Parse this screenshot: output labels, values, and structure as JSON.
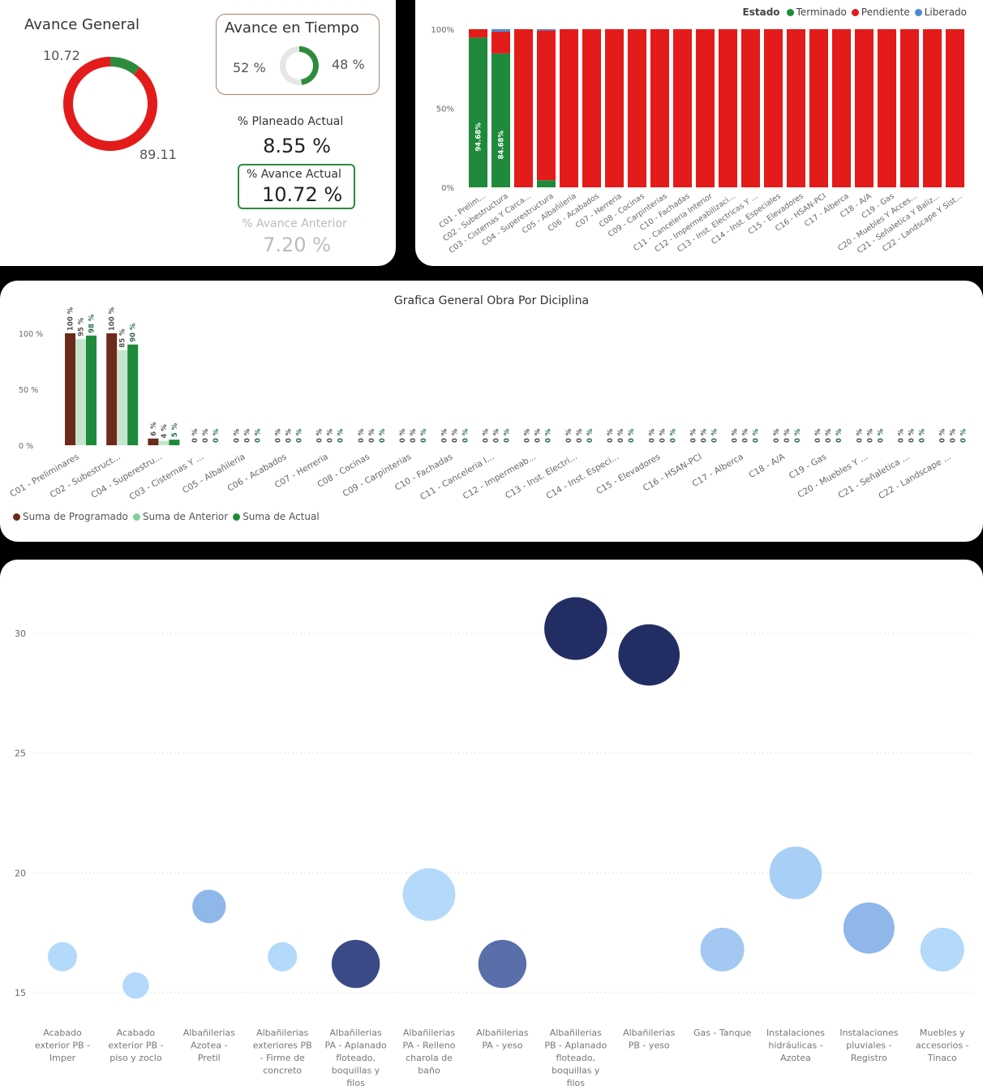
{
  "kpi": {
    "avance_general_title": "Avance General",
    "avance_general_label_small": "10.72",
    "avance_general_label_large": "89.11",
    "avance_tiempo_title": "Avance en Tiempo",
    "tiempo_left": "52 %",
    "tiempo_right": "48 %",
    "planeado_label": "% Planeado Actual",
    "planeado_value": "8.55 %",
    "actual_label": "% Avance Actual",
    "actual_value": "10.72 %",
    "anterior_label": "% Avance Anterior",
    "anterior_value": "7.20 %",
    "donut_general": {
      "completed": 10.72,
      "pending": 89.11
    },
    "donut_tiempo": {
      "elapsed": 48,
      "remaining": 52
    },
    "colors": {
      "green": "#2e8b3e",
      "red": "#e31b1b",
      "grey": "#e6e6e6",
      "blue": "#4a8ad4"
    }
  },
  "chart_data": [
    {
      "type": "bar",
      "stacked_percent": true,
      "legend_title": "Estado",
      "legend_position": "top-right",
      "series_names": [
        "Terminado",
        "Pendiente",
        "Liberado"
      ],
      "series_colors": [
        "#1f8a3b",
        "#e31b1b",
        "#4a8ad4"
      ],
      "y_ticks": [
        "0%",
        "50%",
        "100%"
      ],
      "categories": [
        "C01 - Prelim...",
        "C02 - Subestructura",
        "C03 - Cisternas Y Carca...",
        "C04 - Superestructura",
        "C05 - Albañileria",
        "C06 - Acabados",
        "C07 - Herreria",
        "C08 - Cocinas",
        "C09 - Carpinterias",
        "C10 - Fachadas",
        "C11 - Canceleria Interior",
        "C12 - Impermeabilizaci...",
        "C13 - Inst. Electricas Y ...",
        "C14 - Inst. Especiales",
        "C15 - Elevadores",
        "C16 - HSAN-PCI",
        "C17 - Alberca",
        "C18 - A/A",
        "C19 - Gas",
        "C20 - Muebles Y Acces...",
        "C21 - Señaletica Y Baliz...",
        "C22 - Landscape Y Sist..."
      ],
      "terminado": [
        94.68,
        84.68,
        0,
        4.5,
        0,
        0,
        0,
        0,
        0,
        0,
        0,
        0,
        0,
        0,
        0,
        0,
        0,
        0,
        0,
        0,
        0,
        0
      ],
      "liberado": [
        0,
        1.5,
        0,
        0.8,
        0,
        0,
        0,
        0,
        0,
        0,
        0,
        0,
        0,
        0,
        0,
        0,
        0,
        0,
        0,
        0,
        0,
        0
      ],
      "data_labels": [
        "94.68%",
        "84.68%"
      ]
    },
    {
      "type": "bar",
      "title": "Grafica General Obra Por Diciplina",
      "y_ticks": [
        "0 %",
        "50 %",
        "100 %"
      ],
      "ylim": [
        0,
        100
      ],
      "legend_position": "bottom-left",
      "categories": [
        "C01 - Preliminares",
        "C02 - Subestruct...",
        "C04 - Superestru...",
        "C03 - Cisternas Y ...",
        "C05 - Albañileria",
        "C06 - Acabados",
        "C07 - Herreria",
        "C08 - Cocinas",
        "C09 - Carpinterias",
        "C10 - Fachadas",
        "C11 - Canceleria I...",
        "C12 - Impermeab...",
        "C13 - Inst. Electri...",
        "C14 - Inst. Especi...",
        "C15 - Elevadores",
        "C16 - HSAN-PCI",
        "C17 - Alberca",
        "C18 - A/A",
        "C19 - Gas",
        "C20 - Muebles Y ...",
        "C21 - Señaletica ...",
        "C22 - Landscape ..."
      ],
      "series": [
        {
          "name": "Suma de Programado",
          "color": "#6b2a1a",
          "values": [
            100,
            100,
            6,
            0,
            0,
            0,
            0,
            0,
            0,
            0,
            0,
            0,
            0,
            0,
            0,
            0,
            0,
            0,
            0,
            0,
            0,
            0
          ],
          "labels": [
            "100 %",
            "100 %",
            "6 %",
            "0 %",
            "0 %",
            "0 %",
            "0 %",
            "0 %",
            "0 %",
            "0 %",
            "0 %",
            "0 %",
            "0 %",
            "0 %",
            "0 %",
            "0 %",
            "0 %",
            "0 %",
            "0 %",
            "0 %",
            "0 %",
            "0 %"
          ]
        },
        {
          "name": "Suma de Anterior",
          "color": "#a8dcb4",
          "values": [
            95,
            85,
            4,
            0,
            0,
            0,
            0,
            0,
            0,
            0,
            0,
            0,
            0,
            0,
            0,
            0,
            0,
            0,
            0,
            0,
            0,
            0
          ],
          "labels": [
            "95 %",
            "85 %",
            "4 %",
            "0 %",
            "0 %",
            "0 %",
            "0 %",
            "0 %",
            "0 %",
            "0 %",
            "0 %",
            "0 %",
            "0 %",
            "0 %",
            "0 %",
            "0 %",
            "0 %",
            "0 %",
            "0 %",
            "0 %",
            "0 %",
            "0 %"
          ]
        },
        {
          "name": "Suma de Actual",
          "color": "#1f8a3b",
          "values": [
            98,
            90,
            5,
            0,
            0,
            0,
            0,
            0,
            0,
            0,
            0,
            0,
            0,
            0,
            0,
            0,
            0,
            0,
            0,
            0,
            0,
            0
          ],
          "labels": [
            "98 %",
            "90 %",
            "5 %",
            "0 %",
            "0 %",
            "0 %",
            "0 %",
            "0 %",
            "0 %",
            "0 %",
            "0 %",
            "0 %",
            "0 %",
            "0 %",
            "0 %",
            "0 %",
            "0 %",
            "0 %",
            "0 %",
            "0 %",
            "0 %",
            "0 %"
          ]
        }
      ]
    },
    {
      "type": "scatter",
      "bubble": true,
      "y_ticks": [
        15,
        20,
        25,
        30
      ],
      "ylim": [
        14.5,
        32.5
      ],
      "categories": [
        "Acabado exterior PB - Imper",
        "Acabado exterior PB - piso y zoclo",
        "Albañilerias Azotea - Pretil",
        "Albañilerias exteriores PB - Firme de concreto",
        "Albañilerias PA - Aplanado floteado, boquillas y filos",
        "Albañilerias PA - Relleno charola de baño",
        "Albañilerias PA - yeso",
        "Albañilerias PB - Aplanado floteado, boquillas y filos",
        "Albañilerias PB - yeso",
        "Gas - Tanque",
        "Instalaciones hidráulicas - Azotea",
        "Instalaciones pluviales - Registro",
        "Muebles y accesorios - Tinaco"
      ],
      "points": [
        {
          "x": 0,
          "y": 16.5,
          "size": 2,
          "color": "#b3d9fb"
        },
        {
          "x": 1,
          "y": 15.3,
          "size": 1.8,
          "color": "#b3d9fb"
        },
        {
          "x": 2,
          "y": 18.6,
          "size": 2.3,
          "color": "#8fb7ea"
        },
        {
          "x": 3,
          "y": 16.5,
          "size": 2,
          "color": "#b3d9fb"
        },
        {
          "x": 4,
          "y": 16.2,
          "size": 3.3,
          "color": "#394a86"
        },
        {
          "x": 5,
          "y": 19.1,
          "size": 3.6,
          "color": "#b3d9fb"
        },
        {
          "x": 6,
          "y": 16.2,
          "size": 3.3,
          "color": "#5a6eaa"
        },
        {
          "x": 7,
          "y": 30.2,
          "size": 4.3,
          "color": "#222e63"
        },
        {
          "x": 8,
          "y": 29.1,
          "size": 4.2,
          "color": "#222e63"
        },
        {
          "x": 9,
          "y": 16.8,
          "size": 3,
          "color": "#a3c8f2"
        },
        {
          "x": 10,
          "y": 20,
          "size": 3.6,
          "color": "#a8d0f6"
        },
        {
          "x": 11,
          "y": 17.7,
          "size": 3.5,
          "color": "#8fb7ea"
        },
        {
          "x": 12,
          "y": 16.8,
          "size": 3,
          "color": "#b3d9fb"
        }
      ]
    }
  ]
}
